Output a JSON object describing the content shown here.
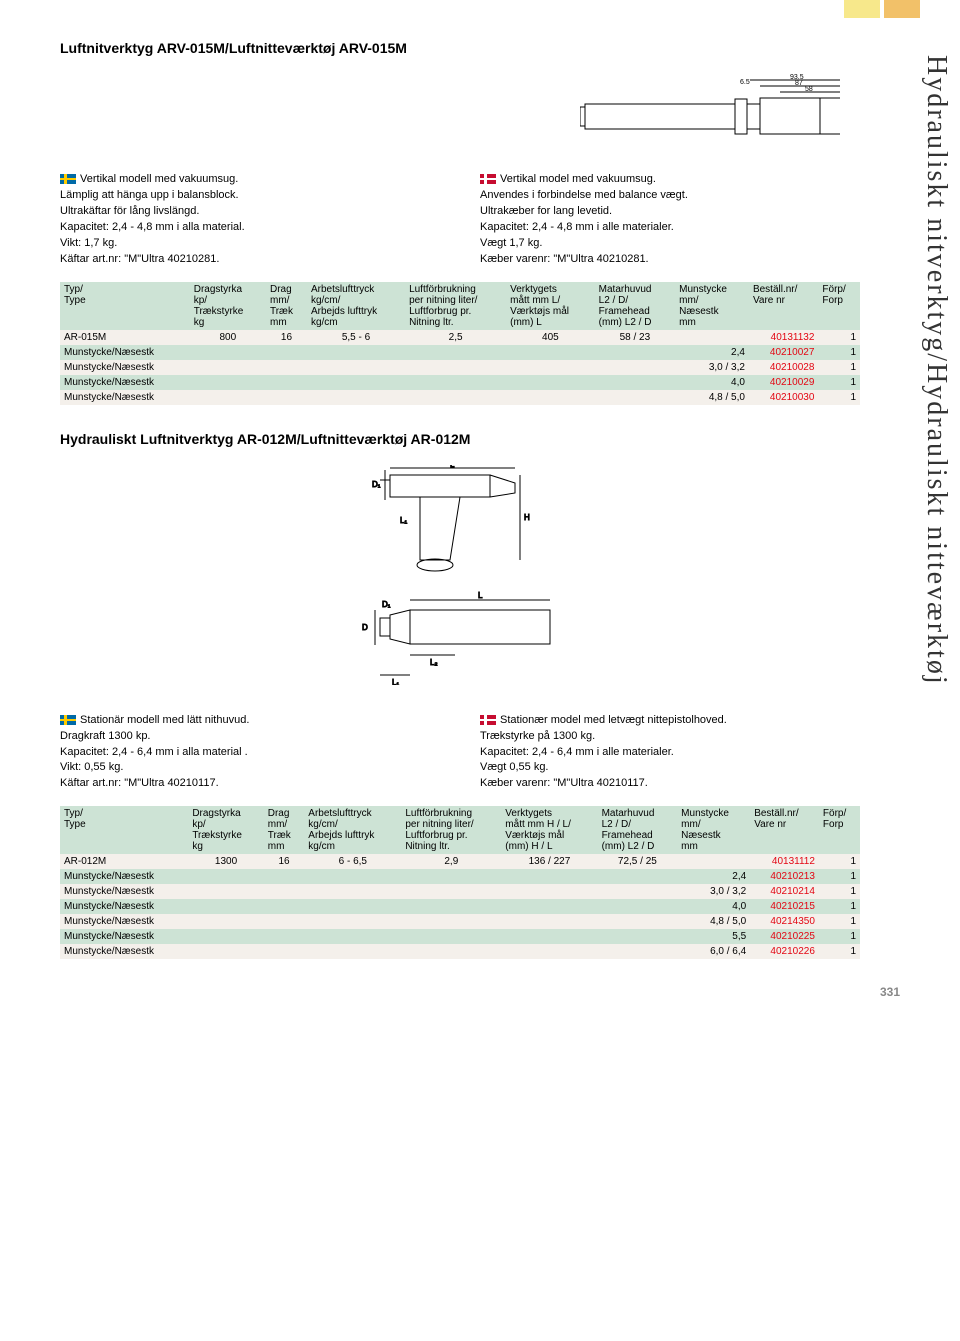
{
  "colors": {
    "header_bg": "#cde3d5",
    "row_odd": "#f4f0eb",
    "row_even": "#cde3d5",
    "accent_red": "#e30613",
    "tab_yellow": "#f7e88b",
    "tab_orange": "#f2c169"
  },
  "side_title": "Hydrauliskt nitverktyg/Hydrauliskt nitteværktøj",
  "page_number": "331",
  "section1": {
    "title": "Luftnitverktyg ARV-015M/Luftnitteværktøj ARV-015M",
    "se": [
      "Vertikal modell med vakuumsug.",
      "Lämplig att hänga upp i balansblock.",
      "Ultrakäftar för lång livslängd.",
      "Kapacitet: 2,4 - 4,8 mm i alla material.",
      "Vikt: 1,7 kg.",
      "Käftar art.nr: \"M\"Ultra 40210281."
    ],
    "dk": [
      "Vertikal model med vakuumsug.",
      "Anvendes i forbindelse med balance vægt.",
      "Ultrakæber for lang levetid.",
      "Kapacitet: 2,4 - 4,8 mm i alle materialer.",
      "Vægt 1,7 kg.",
      "Kæber varenr: \"M\"Ultra 40210281."
    ],
    "diagram_labels": {
      "w1": "93.5",
      "w2": "87",
      "w3": "58",
      "gap": "6.5"
    }
  },
  "table_headers": {
    "c0": [
      "Typ/",
      "Type",
      "",
      ""
    ],
    "c1": [
      "Dragstyrka",
      "kp/",
      "Trækstyrke",
      "kg"
    ],
    "c2": [
      "Drag",
      "mm/",
      "Træk",
      "mm"
    ],
    "c3": [
      "Arbetslufttryck",
      "kg/cm/",
      "Arbejds lufttryk",
      "kg/cm"
    ],
    "c4": [
      "Luftförbrukning",
      "per nitning liter/",
      "Luftforbrug pr.",
      "Nitning ltr."
    ],
    "c5": [
      "Verktygets",
      "mått mm L/",
      "Værktøjs mål",
      "(mm) L"
    ],
    "c6": [
      "Matarhuvud",
      "L2 / D/",
      "Framehead",
      "(mm) L2 / D"
    ],
    "c7": [
      "Munstycke",
      "mm/",
      "Næsestk",
      "mm"
    ],
    "c8": [
      "Beställ.nr/",
      "Vare nr",
      "",
      ""
    ],
    "c9": [
      "Förp/",
      "Forp",
      "",
      ""
    ]
  },
  "table1": {
    "rows": [
      {
        "typ": "AR-015M",
        "drag_kp": "800",
        "drag_mm": "16",
        "tryck": "5,5 - 6",
        "luft": "2,5",
        "matt": "405",
        "head": "58 / 23",
        "mun": "",
        "art": "40131132",
        "forp": "1"
      },
      {
        "typ": "Munstycke/Næsestk",
        "drag_kp": "",
        "drag_mm": "",
        "tryck": "",
        "luft": "",
        "matt": "",
        "head": "",
        "mun": "2,4",
        "art": "40210027",
        "forp": "1"
      },
      {
        "typ": "Munstycke/Næsestk",
        "drag_kp": "",
        "drag_mm": "",
        "tryck": "",
        "luft": "",
        "matt": "",
        "head": "",
        "mun": "3,0 / 3,2",
        "art": "40210028",
        "forp": "1"
      },
      {
        "typ": "Munstycke/Næsestk",
        "drag_kp": "",
        "drag_mm": "",
        "tryck": "",
        "luft": "",
        "matt": "",
        "head": "",
        "mun": "4,0",
        "art": "40210029",
        "forp": "1"
      },
      {
        "typ": "Munstycke/Næsestk",
        "drag_kp": "",
        "drag_mm": "",
        "tryck": "",
        "luft": "",
        "matt": "",
        "head": "",
        "mun": "4,8 / 5,0",
        "art": "40210030",
        "forp": "1"
      }
    ]
  },
  "section2": {
    "title": "Hydrauliskt Luftnitverktyg AR-012M/Luftnitteværktøj AR-012M",
    "se": [
      "Stationär modell med lätt nithuvud.",
      "Dragkraft 1300 kp.",
      "Kapacitet: 2,4 - 6,4 mm i alla material .",
      "Vikt: 0,55 kg.",
      "Käftar art.nr: \"M\"Ultra 40210117."
    ],
    "dk": [
      "Stationær model med letvægt nittepistolhoved.",
      "Trækstyrke på 1300 kg.",
      "Kapacitet: 2,4 - 6,4 mm i alle materialer.",
      "Vægt 0,55 kg.",
      "Kæber varenr: \"M\"Ultra 40210117."
    ]
  },
  "table2_headers_c5": [
    "Verktygets",
    "mått mm H / L/",
    "Værktøjs mål",
    "(mm) H / L"
  ],
  "table2": {
    "rows": [
      {
        "typ": "AR-012M",
        "drag_kp": "1300",
        "drag_mm": "16",
        "tryck": "6 - 6,5",
        "luft": "2,9",
        "matt": "136 / 227",
        "head": "72,5 / 25",
        "mun": "",
        "art": "40131112",
        "forp": "1"
      },
      {
        "typ": "Munstycke/Næsestk",
        "drag_kp": "",
        "drag_mm": "",
        "tryck": "",
        "luft": "",
        "matt": "",
        "head": "",
        "mun": "2,4",
        "art": "40210213",
        "forp": "1"
      },
      {
        "typ": "Munstycke/Næsestk",
        "drag_kp": "",
        "drag_mm": "",
        "tryck": "",
        "luft": "",
        "matt": "",
        "head": "",
        "mun": "3,0 / 3,2",
        "art": "40210214",
        "forp": "1"
      },
      {
        "typ": "Munstycke/Næsestk",
        "drag_kp": "",
        "drag_mm": "",
        "tryck": "",
        "luft": "",
        "matt": "",
        "head": "",
        "mun": "4,0",
        "art": "40210215",
        "forp": "1"
      },
      {
        "typ": "Munstycke/Næsestk",
        "drag_kp": "",
        "drag_mm": "",
        "tryck": "",
        "luft": "",
        "matt": "",
        "head": "",
        "mun": "4,8 / 5,0",
        "art": "40214350",
        "forp": "1"
      },
      {
        "typ": "Munstycke/Næsestk",
        "drag_kp": "",
        "drag_mm": "",
        "tryck": "",
        "luft": "",
        "matt": "",
        "head": "",
        "mun": "5,5",
        "art": "40210225",
        "forp": "1"
      },
      {
        "typ": "Munstycke/Næsestk",
        "drag_kp": "",
        "drag_mm": "",
        "tryck": "",
        "luft": "",
        "matt": "",
        "head": "",
        "mun": "6,0 / 6,4",
        "art": "40210226",
        "forp": "1"
      }
    ]
  }
}
